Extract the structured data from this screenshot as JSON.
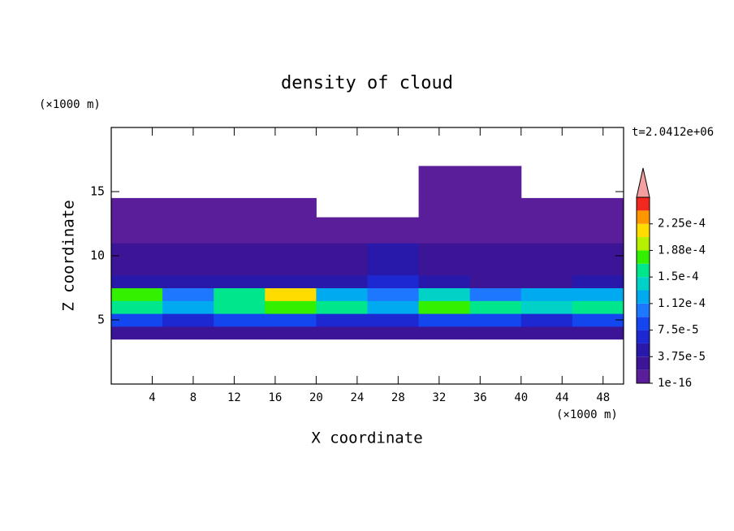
{
  "chart_data": {
    "type": "contour",
    "title": "density of cloud",
    "xlabel": "X coordinate",
    "ylabel": "Z coordinate",
    "x_unit": "(×1000 m)",
    "y_unit": "(×1000 m)",
    "annotation": "t=2.0412e+06",
    "xlim": [
      0,
      50
    ],
    "ylim": [
      0,
      20
    ],
    "xticks": [
      4,
      8,
      12,
      16,
      20,
      24,
      28,
      32,
      36,
      40,
      44,
      48
    ],
    "yticks": [
      5,
      10,
      15
    ],
    "x_edges": [
      0,
      5,
      10,
      15,
      20,
      25,
      30,
      35,
      40,
      45,
      50
    ],
    "z_edges": [
      3.5,
      4.5,
      5.5,
      6.5,
      7.5,
      8.5,
      11,
      13,
      14.5,
      17
    ],
    "z": [
      [
        2.5e-05,
        2.5e-05,
        3e-05,
        2.5e-05,
        2.5e-05,
        3e-05,
        2.5e-05,
        2.5e-05,
        2.5e-05,
        2.5e-05
      ],
      [
        8e-05,
        7e-05,
        8e-05,
        8e-05,
        7e-05,
        7e-05,
        8e-05,
        8e-05,
        7e-05,
        8e-05
      ],
      [
        0.00016,
        0.00012,
        0.00016,
        0.00017,
        0.00015,
        0.00012,
        0.00017,
        0.00015,
        0.00014,
        0.00016
      ],
      [
        0.00017,
        0.0001,
        0.00015,
        0.00021,
        0.00013,
        0.0001,
        0.00014,
        0.00011,
        0.00012,
        0.00013
      ],
      [
        4e-05,
        5e-05,
        4e-05,
        5e-05,
        4e-05,
        6e-05,
        4e-05,
        3e-05,
        3e-05,
        4e-05
      ],
      [
        2e-05,
        2.5e-05,
        2.5e-05,
        2e-05,
        2.5e-05,
        4e-05,
        2.5e-05,
        2e-05,
        2e-05,
        2e-05
      ],
      [
        1e-05,
        1.2e-05,
        1e-05,
        1e-05,
        1e-05,
        1e-05,
        1.2e-05,
        1e-05,
        1e-05,
        1e-05
      ],
      [
        1e-16,
        1e-16,
        1e-16,
        1e-16,
        null,
        null,
        1e-16,
        1e-16,
        1e-16,
        1e-16
      ],
      [
        null,
        null,
        null,
        null,
        null,
        null,
        1e-16,
        1e-16,
        null,
        null
      ]
    ],
    "levels": [
      1e-16,
      1.875e-05,
      3.75e-05,
      5.625e-05,
      7.5e-05,
      9.375e-05,
      0.0001125,
      0.00013125,
      0.00015,
      0.00016875,
      0.0001875,
      0.00020625,
      0.000225,
      0.00024375,
      0.0002625
    ],
    "colors": [
      "#5a1e9a",
      "#3c1496",
      "#2819aa",
      "#1e28d2",
      "#1446f0",
      "#1e78ff",
      "#00aaf0",
      "#00d2c8",
      "#00e68c",
      "#32f000",
      "#b4f000",
      "#ffdc00",
      "#ff9600",
      "#f0281e"
    ],
    "extend_color": "#f4a0a0",
    "cticks": [
      {
        "value": 1e-16,
        "label": "1e-16"
      },
      {
        "value": 3.75e-05,
        "label": "3.75e-5"
      },
      {
        "value": 7.5e-05,
        "label": "7.5e-5"
      },
      {
        "value": 0.0001125,
        "label": "1.12e-4"
      },
      {
        "value": 0.00015,
        "label": "1.5e-4"
      },
      {
        "value": 0.0001875,
        "label": "1.88e-4"
      },
      {
        "value": 0.000225,
        "label": "2.25e-4"
      }
    ]
  }
}
